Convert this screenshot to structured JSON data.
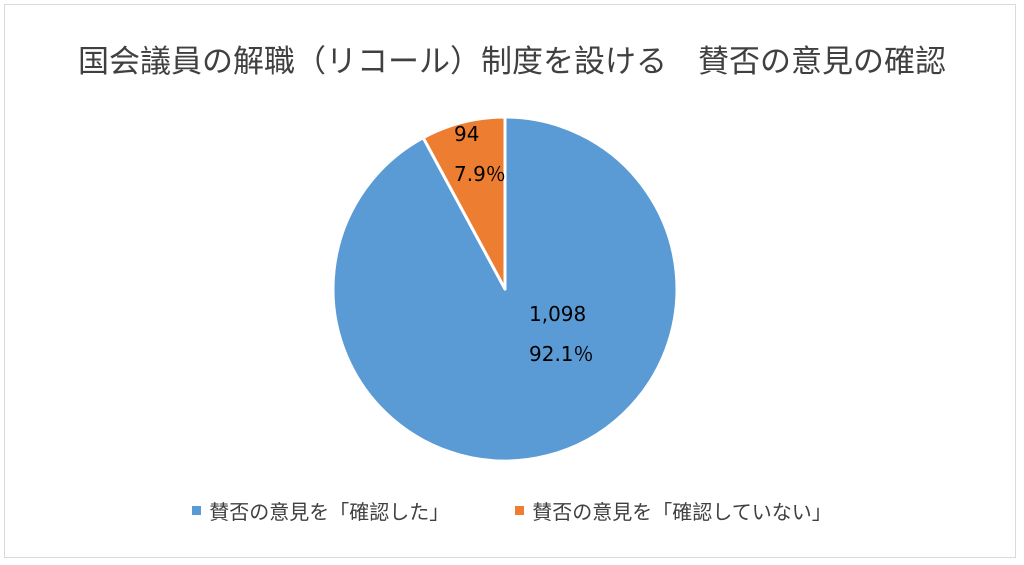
{
  "chart_data": {
    "type": "pie",
    "title": "国会議員の解職（リコール）制度を設ける　賛否の意見の確認",
    "slices": [
      {
        "label": "賛否の意見を「確認した」",
        "value": 1098,
        "value_label": "1,098",
        "percent_label": "92.1％",
        "color": "#5b9bd5"
      },
      {
        "label": "賛否の意見を「確認していない」",
        "value": 94,
        "value_label": "94",
        "percent_label": "7.9％",
        "color": "#ed7d31"
      }
    ],
    "legend_position": "bottom",
    "start_angle_deg": 0,
    "direction": "clockwise"
  }
}
